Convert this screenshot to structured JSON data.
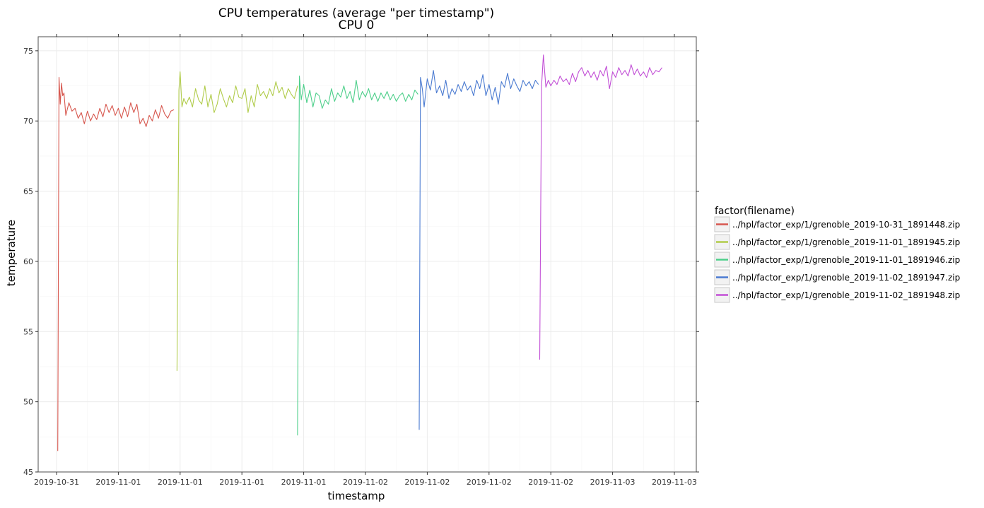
{
  "chart_data": {
    "type": "line",
    "title": "CPU temperatures (average \"per timestamp\")",
    "subtitle": "CPU 0",
    "xlabel": "timestamp",
    "ylabel": "temperature",
    "ylim": [
      45,
      76
    ],
    "yticks": [
      45,
      50,
      55,
      60,
      65,
      70,
      75
    ],
    "xlim": [
      0,
      10.8
    ],
    "xticks": [
      {
        "x": 0,
        "label": "2019-10-31"
      },
      {
        "x": 1,
        "label": "2019-11-01"
      },
      {
        "x": 2,
        "label": "2019-11-01"
      },
      {
        "x": 3,
        "label": "2019-11-01"
      },
      {
        "x": 4,
        "label": "2019-11-01"
      },
      {
        "x": 5,
        "label": "2019-11-02"
      },
      {
        "x": 6,
        "label": "2019-11-02"
      },
      {
        "x": 7,
        "label": "2019-11-02"
      },
      {
        "x": 8,
        "label": "2019-11-02"
      },
      {
        "x": 9,
        "label": "2019-11-03"
      },
      {
        "x": 10,
        "label": "2019-11-03"
      }
    ],
    "grid": true,
    "legend": {
      "title": "factor(filename)",
      "position": "right"
    },
    "series": [
      {
        "name": "../hpl/factor_exp/1/grenoble_2019-10-31_1891448.zip",
        "color": "#d7584f",
        "x": [
          0.02,
          0.04,
          0.06,
          0.08,
          0.1,
          0.12,
          0.15,
          0.2,
          0.25,
          0.3,
          0.35,
          0.4,
          0.45,
          0.5,
          0.55,
          0.6,
          0.65,
          0.7,
          0.75,
          0.8,
          0.85,
          0.9,
          0.95,
          1.0,
          1.05,
          1.1,
          1.15,
          1.2,
          1.25,
          1.3,
          1.35,
          1.4,
          1.45,
          1.5,
          1.55,
          1.6,
          1.65,
          1.7,
          1.75,
          1.8,
          1.85,
          1.9
        ],
        "y": [
          46.5,
          73.1,
          71.2,
          72.7,
          71.8,
          72.0,
          70.4,
          71.3,
          70.7,
          70.9,
          70.2,
          70.6,
          69.8,
          70.7,
          70.0,
          70.5,
          70.1,
          70.9,
          70.3,
          71.2,
          70.6,
          71.1,
          70.4,
          70.9,
          70.2,
          71.0,
          70.3,
          71.3,
          70.6,
          71.2,
          69.8,
          70.2,
          69.6,
          70.4,
          70.0,
          70.8,
          70.2,
          71.1,
          70.5,
          70.2,
          70.7,
          70.8
        ]
      },
      {
        "name": "../hpl/factor_exp/1/grenoble_2019-11-01_1891945.zip",
        "color": "#b1cc4b",
        "x": [
          1.95,
          1.98,
          2.0,
          2.03,
          2.06,
          2.1,
          2.15,
          2.2,
          2.25,
          2.3,
          2.35,
          2.4,
          2.45,
          2.5,
          2.55,
          2.6,
          2.65,
          2.7,
          2.75,
          2.8,
          2.85,
          2.9,
          2.95,
          3.0,
          3.05,
          3.1,
          3.15,
          3.2,
          3.25,
          3.3,
          3.35,
          3.4,
          3.45,
          3.5,
          3.55,
          3.6,
          3.65,
          3.7,
          3.75,
          3.8,
          3.85,
          3.9
        ],
        "y": [
          52.2,
          72.2,
          73.5,
          71.0,
          71.6,
          71.2,
          71.7,
          71.0,
          72.3,
          71.5,
          71.2,
          72.5,
          71.0,
          71.9,
          70.6,
          71.2,
          72.3,
          71.6,
          71.0,
          71.8,
          71.3,
          72.5,
          71.7,
          71.6,
          72.3,
          70.6,
          71.8,
          71.0,
          72.6,
          71.8,
          72.1,
          71.6,
          72.3,
          71.8,
          72.8,
          72.0,
          72.4,
          71.6,
          72.3,
          71.9,
          71.6,
          72.5
        ]
      },
      {
        "name": "../hpl/factor_exp/1/grenoble_2019-11-01_1891946.zip",
        "color": "#4dcf8a",
        "x": [
          3.9,
          3.93,
          3.96,
          4.0,
          4.05,
          4.1,
          4.15,
          4.2,
          4.25,
          4.3,
          4.35,
          4.4,
          4.45,
          4.5,
          4.55,
          4.6,
          4.65,
          4.7,
          4.75,
          4.8,
          4.85,
          4.9,
          4.95,
          5.0,
          5.05,
          5.1,
          5.15,
          5.2,
          5.25,
          5.3,
          5.35,
          5.4,
          5.45,
          5.5,
          5.55,
          5.6,
          5.65,
          5.7,
          5.75,
          5.8,
          5.85
        ],
        "y": [
          47.6,
          73.2,
          71.5,
          72.6,
          71.3,
          72.2,
          71.0,
          72.0,
          71.8,
          70.9,
          71.5,
          71.2,
          72.3,
          71.4,
          72.0,
          71.7,
          72.5,
          71.6,
          72.1,
          71.3,
          72.9,
          71.5,
          72.1,
          71.7,
          72.3,
          71.5,
          72.0,
          71.4,
          72.0,
          71.6,
          72.1,
          71.5,
          71.9,
          71.4,
          71.8,
          72.0,
          71.4,
          71.9,
          71.5,
          72.2,
          71.9
        ]
      },
      {
        "name": "../hpl/factor_exp/1/grenoble_2019-11-02_1891947.zip",
        "color": "#4b7bd1",
        "x": [
          5.87,
          5.89,
          5.92,
          5.95,
          6.0,
          6.05,
          6.1,
          6.15,
          6.2,
          6.25,
          6.3,
          6.35,
          6.4,
          6.45,
          6.5,
          6.55,
          6.6,
          6.65,
          6.7,
          6.75,
          6.8,
          6.85,
          6.9,
          6.95,
          7.0,
          7.05,
          7.1,
          7.15,
          7.2,
          7.25,
          7.3,
          7.35,
          7.4,
          7.45,
          7.5,
          7.55,
          7.6,
          7.65,
          7.7,
          7.75,
          7.8
        ],
        "y": [
          48.0,
          73.1,
          72.3,
          71.0,
          73.0,
          72.2,
          73.6,
          72.0,
          72.5,
          71.8,
          72.9,
          71.6,
          72.3,
          71.9,
          72.6,
          72.1,
          72.8,
          72.2,
          72.5,
          71.8,
          72.9,
          72.3,
          73.3,
          71.8,
          72.6,
          71.5,
          72.4,
          71.2,
          72.8,
          72.4,
          73.4,
          72.3,
          73.0,
          72.5,
          72.1,
          72.9,
          72.5,
          72.8,
          72.3,
          72.9,
          72.6
        ]
      },
      {
        "name": "../hpl/factor_exp/1/grenoble_2019-11-02_1891948.zip",
        "color": "#c24fd6",
        "x": [
          7.82,
          7.85,
          7.88,
          7.92,
          7.96,
          8.0,
          8.05,
          8.1,
          8.15,
          8.2,
          8.25,
          8.3,
          8.35,
          8.4,
          8.45,
          8.5,
          8.55,
          8.6,
          8.65,
          8.7,
          8.75,
          8.8,
          8.85,
          8.9,
          8.95,
          9.0,
          9.05,
          9.1,
          9.15,
          9.2,
          9.25,
          9.3,
          9.35,
          9.4,
          9.45,
          9.5,
          9.55,
          9.6,
          9.65,
          9.7,
          9.75,
          9.8
        ],
        "y": [
          53.0,
          72.5,
          74.7,
          72.4,
          72.9,
          72.5,
          72.9,
          72.6,
          73.2,
          72.8,
          73.0,
          72.6,
          73.4,
          72.8,
          73.5,
          73.8,
          73.2,
          73.6,
          73.1,
          73.5,
          72.9,
          73.6,
          73.2,
          73.9,
          72.3,
          73.5,
          73.1,
          73.8,
          73.3,
          73.6,
          73.2,
          74.0,
          73.3,
          73.7,
          73.2,
          73.5,
          73.1,
          73.8,
          73.3,
          73.6,
          73.5,
          73.8
        ]
      }
    ]
  }
}
